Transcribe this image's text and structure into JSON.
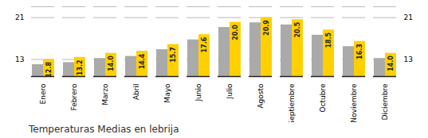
{
  "chart_data": {
    "type": "bar",
    "title": "Temperaturas Medias en lebrija",
    "categories": [
      "Enero",
      "Febrero",
      "Marzo",
      "Abril",
      "Mayo",
      "Junio",
      "Julio",
      "Agosto",
      "Septiembre",
      "Octubre",
      "Noviembre",
      "Diciembre"
    ],
    "series": [
      {
        "color": "#AAAAAA",
        "values": [
          11.8,
          12.2,
          13.0,
          13.4,
          14.7,
          16.6,
          19.0,
          19.9,
          19.5,
          17.5,
          15.3,
          13.0
        ]
      },
      {
        "color": "#FFD000",
        "values": [
          12.8,
          13.2,
          14.0,
          14.4,
          15.7,
          17.6,
          20.0,
          20.9,
          20.5,
          18.5,
          16.3,
          14.0
        ],
        "value_labels": [
          "12.8",
          "13.2",
          "14.0",
          "14.4",
          "15.7",
          "17.6",
          "20.0",
          "20.9",
          "20.5",
          "18.5",
          "16.3",
          "14.0"
        ],
        "data_labels": true
      }
    ],
    "ylim": [
      9.5,
      23.0
    ],
    "yticks": [
      12.8,
      20.9
    ],
    "grid": true
  }
}
